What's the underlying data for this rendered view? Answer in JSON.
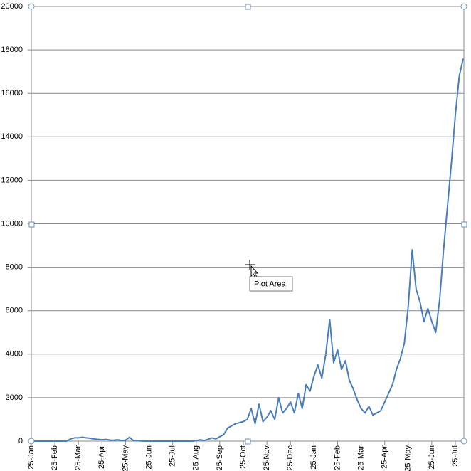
{
  "chart_data": {
    "type": "line",
    "categories": [
      "25-Jan",
      null,
      null,
      null,
      null,
      null,
      "25-Feb",
      null,
      null,
      null,
      null,
      null,
      "25-Mar",
      null,
      null,
      null,
      null,
      null,
      "25-Apr",
      null,
      null,
      null,
      null,
      null,
      "25-May",
      null,
      null,
      null,
      null,
      null,
      "25-Jun",
      null,
      null,
      null,
      null,
      null,
      "25-Jul",
      null,
      null,
      null,
      null,
      null,
      "25-Aug",
      null,
      null,
      null,
      null,
      null,
      "25-Sep",
      null,
      null,
      null,
      null,
      null,
      "25-Oct",
      null,
      null,
      null,
      null,
      null,
      "25-Nov",
      null,
      null,
      null,
      null,
      null,
      "25-Dec",
      null,
      null,
      null,
      null,
      null,
      "25-Jan",
      null,
      null,
      null,
      null,
      null,
      "25-Feb",
      null,
      null,
      null,
      null,
      null,
      "25-Mar",
      null,
      null,
      null,
      null,
      null,
      "25-Apr",
      null,
      null,
      null,
      null,
      null,
      "25-May",
      null,
      null,
      null,
      null,
      null,
      "25-Jun",
      null,
      null,
      null,
      null,
      null,
      "25-Jul",
      null,
      null
    ],
    "series": [
      {
        "color": "#4a7ebb",
        "values": [
          0,
          0,
          0,
          0,
          0,
          0,
          0,
          0,
          0,
          0,
          100,
          150,
          150,
          180,
          150,
          130,
          100,
          80,
          60,
          80,
          50,
          40,
          60,
          30,
          40,
          180,
          20,
          20,
          10,
          0,
          0,
          0,
          0,
          0,
          0,
          0,
          0,
          0,
          0,
          0,
          0,
          0,
          20,
          60,
          30,
          80,
          150,
          100,
          200,
          300,
          600,
          700,
          800,
          850,
          900,
          1000,
          1500,
          800,
          1700,
          900,
          1100,
          1400,
          1000,
          2000,
          1300,
          1500,
          1800,
          1300,
          2200,
          1500,
          2600,
          2300,
          3000,
          3500,
          2900,
          4000,
          5600,
          3600,
          4200,
          3300,
          3700,
          2800,
          2400,
          1900,
          1500,
          1300,
          1600,
          1200,
          1300,
          1400,
          1800,
          2200,
          2600,
          3300,
          3800,
          4500,
          6200,
          8800,
          7000,
          6400,
          5500,
          6100,
          5500,
          5000,
          6500,
          8800,
          10800,
          12800,
          15000,
          16800,
          17600
        ]
      }
    ],
    "ylim": [
      0,
      20000
    ],
    "yticks": [
      0,
      2000,
      4000,
      6000,
      8000,
      10000,
      12000,
      14000,
      16000,
      18000,
      20000
    ],
    "grid": true
  },
  "tooltip": "Plot Area"
}
